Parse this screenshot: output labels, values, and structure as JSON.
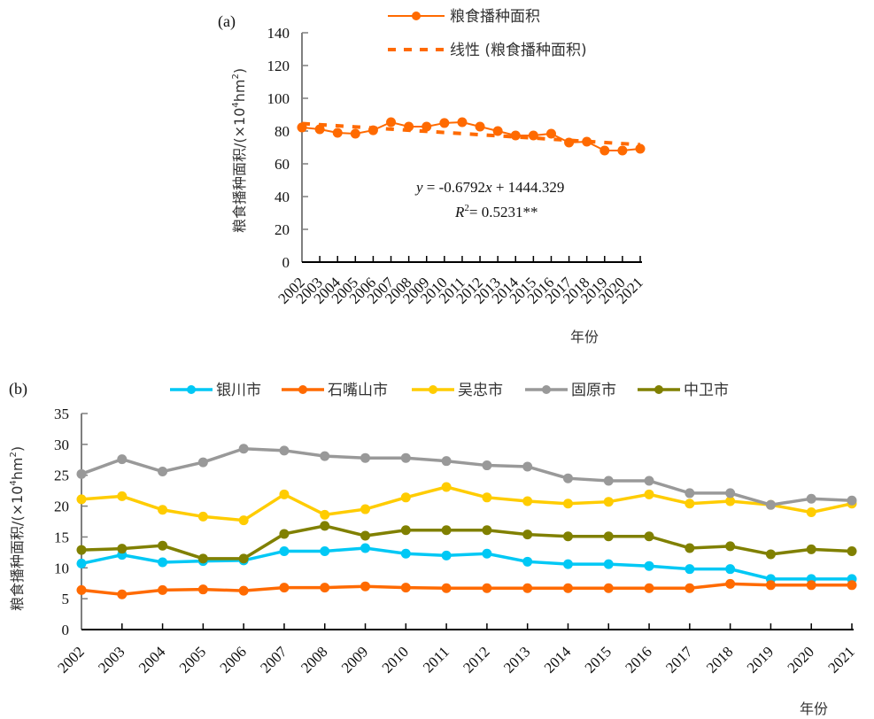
{
  "chart_data": [
    {
      "type": "line",
      "panel_label": "(a)",
      "title": "",
      "xlabel": "年份",
      "ylabel": "粮食播种面积/(×10⁴hm²)",
      "ylabel_parts": {
        "main": "粮食播种面积/(×10",
        "sup1": "4",
        "mid": "hm",
        "sup2": "2",
        "end": ")"
      },
      "ylim": [
        0,
        140
      ],
      "yticks": [
        0,
        20,
        40,
        60,
        80,
        100,
        120,
        140
      ],
      "categories": [
        "2002",
        "2003",
        "2004",
        "2005",
        "2006",
        "2007",
        "2008",
        "2009",
        "2010",
        "2011",
        "2012",
        "2013",
        "2014",
        "2015",
        "2016",
        "2017",
        "2018",
        "2019",
        "2020",
        "2021"
      ],
      "series": [
        {
          "name": "粮食播种面积",
          "color": "#FF6A00",
          "style": "solid-marker",
          "values": [
            82.2,
            81.1,
            78.9,
            78.4,
            80.5,
            85.4,
            82.7,
            82.7,
            84.9,
            85.4,
            82.7,
            80.0,
            77.3,
            77.3,
            78.4,
            73.0,
            73.5,
            68.1,
            68.1,
            69.2
          ]
        },
        {
          "name": "线性 (粮食播种面积)",
          "color": "#FF6A00",
          "style": "dashed",
          "trend": {
            "slope": -0.6792,
            "intercept": 1444.329
          }
        }
      ],
      "annotations": {
        "equation": {
          "y": "y",
          "rest": " = -0.6792",
          "x": "x",
          "tail": " + 1444.329"
        },
        "r2": {
          "R": "R",
          "sup": "2",
          "tail": "= 0.5231**"
        }
      },
      "legend": "top-right",
      "grid": false
    },
    {
      "type": "line",
      "panel_label": "(b)",
      "title": "",
      "xlabel": "年份",
      "ylabel": "粮食播种面积/(×10⁴hm²)",
      "ylabel_parts": {
        "main": "粮食播种面积/(×10",
        "sup1": "4",
        "mid": "hm",
        "sup2": "2",
        "end": ")"
      },
      "ylim": [
        0,
        35
      ],
      "yticks": [
        0,
        5,
        10,
        15,
        20,
        25,
        30,
        35
      ],
      "categories": [
        "2002",
        "2003",
        "2004",
        "2005",
        "2006",
        "2007",
        "2008",
        "2009",
        "2010",
        "2011",
        "2012",
        "2013",
        "2014",
        "2015",
        "2016",
        "2017",
        "2018",
        "2019",
        "2020",
        "2021"
      ],
      "series": [
        {
          "name": "银川市",
          "color": "#00C8F5",
          "values": [
            10.7,
            12.1,
            10.9,
            11.1,
            11.2,
            12.7,
            12.7,
            13.2,
            12.3,
            12.0,
            12.3,
            11.0,
            10.6,
            10.6,
            10.3,
            9.8,
            9.8,
            8.2,
            8.2,
            8.2
          ]
        },
        {
          "name": "石嘴山市",
          "color": "#FF6A00",
          "values": [
            6.4,
            5.7,
            6.4,
            6.5,
            6.3,
            6.8,
            6.8,
            7.0,
            6.8,
            6.7,
            6.7,
            6.7,
            6.7,
            6.7,
            6.7,
            6.7,
            7.4,
            7.2,
            7.2,
            7.2
          ]
        },
        {
          "name": "吴忠市",
          "color": "#FFCC00",
          "values": [
            21.1,
            21.6,
            19.4,
            18.3,
            17.7,
            21.9,
            18.6,
            19.5,
            21.4,
            23.1,
            21.4,
            20.8,
            20.4,
            20.7,
            21.9,
            20.4,
            20.8,
            20.2,
            19.0,
            20.4
          ]
        },
        {
          "name": "固原市",
          "color": "#999999",
          "values": [
            25.2,
            27.6,
            25.6,
            27.1,
            29.3,
            29.0,
            28.1,
            27.8,
            27.8,
            27.3,
            26.6,
            26.4,
            24.5,
            24.1,
            24.1,
            22.1,
            22.1,
            20.2,
            21.2,
            20.9
          ]
        },
        {
          "name": "中卫市",
          "color": "#808000",
          "values": [
            12.9,
            13.1,
            13.6,
            11.5,
            11.5,
            15.5,
            16.8,
            15.2,
            16.1,
            16.1,
            16.1,
            15.4,
            15.1,
            15.1,
            15.1,
            13.2,
            13.5,
            12.2,
            13.0,
            12.7
          ]
        }
      ],
      "legend": "top",
      "grid": false
    }
  ]
}
